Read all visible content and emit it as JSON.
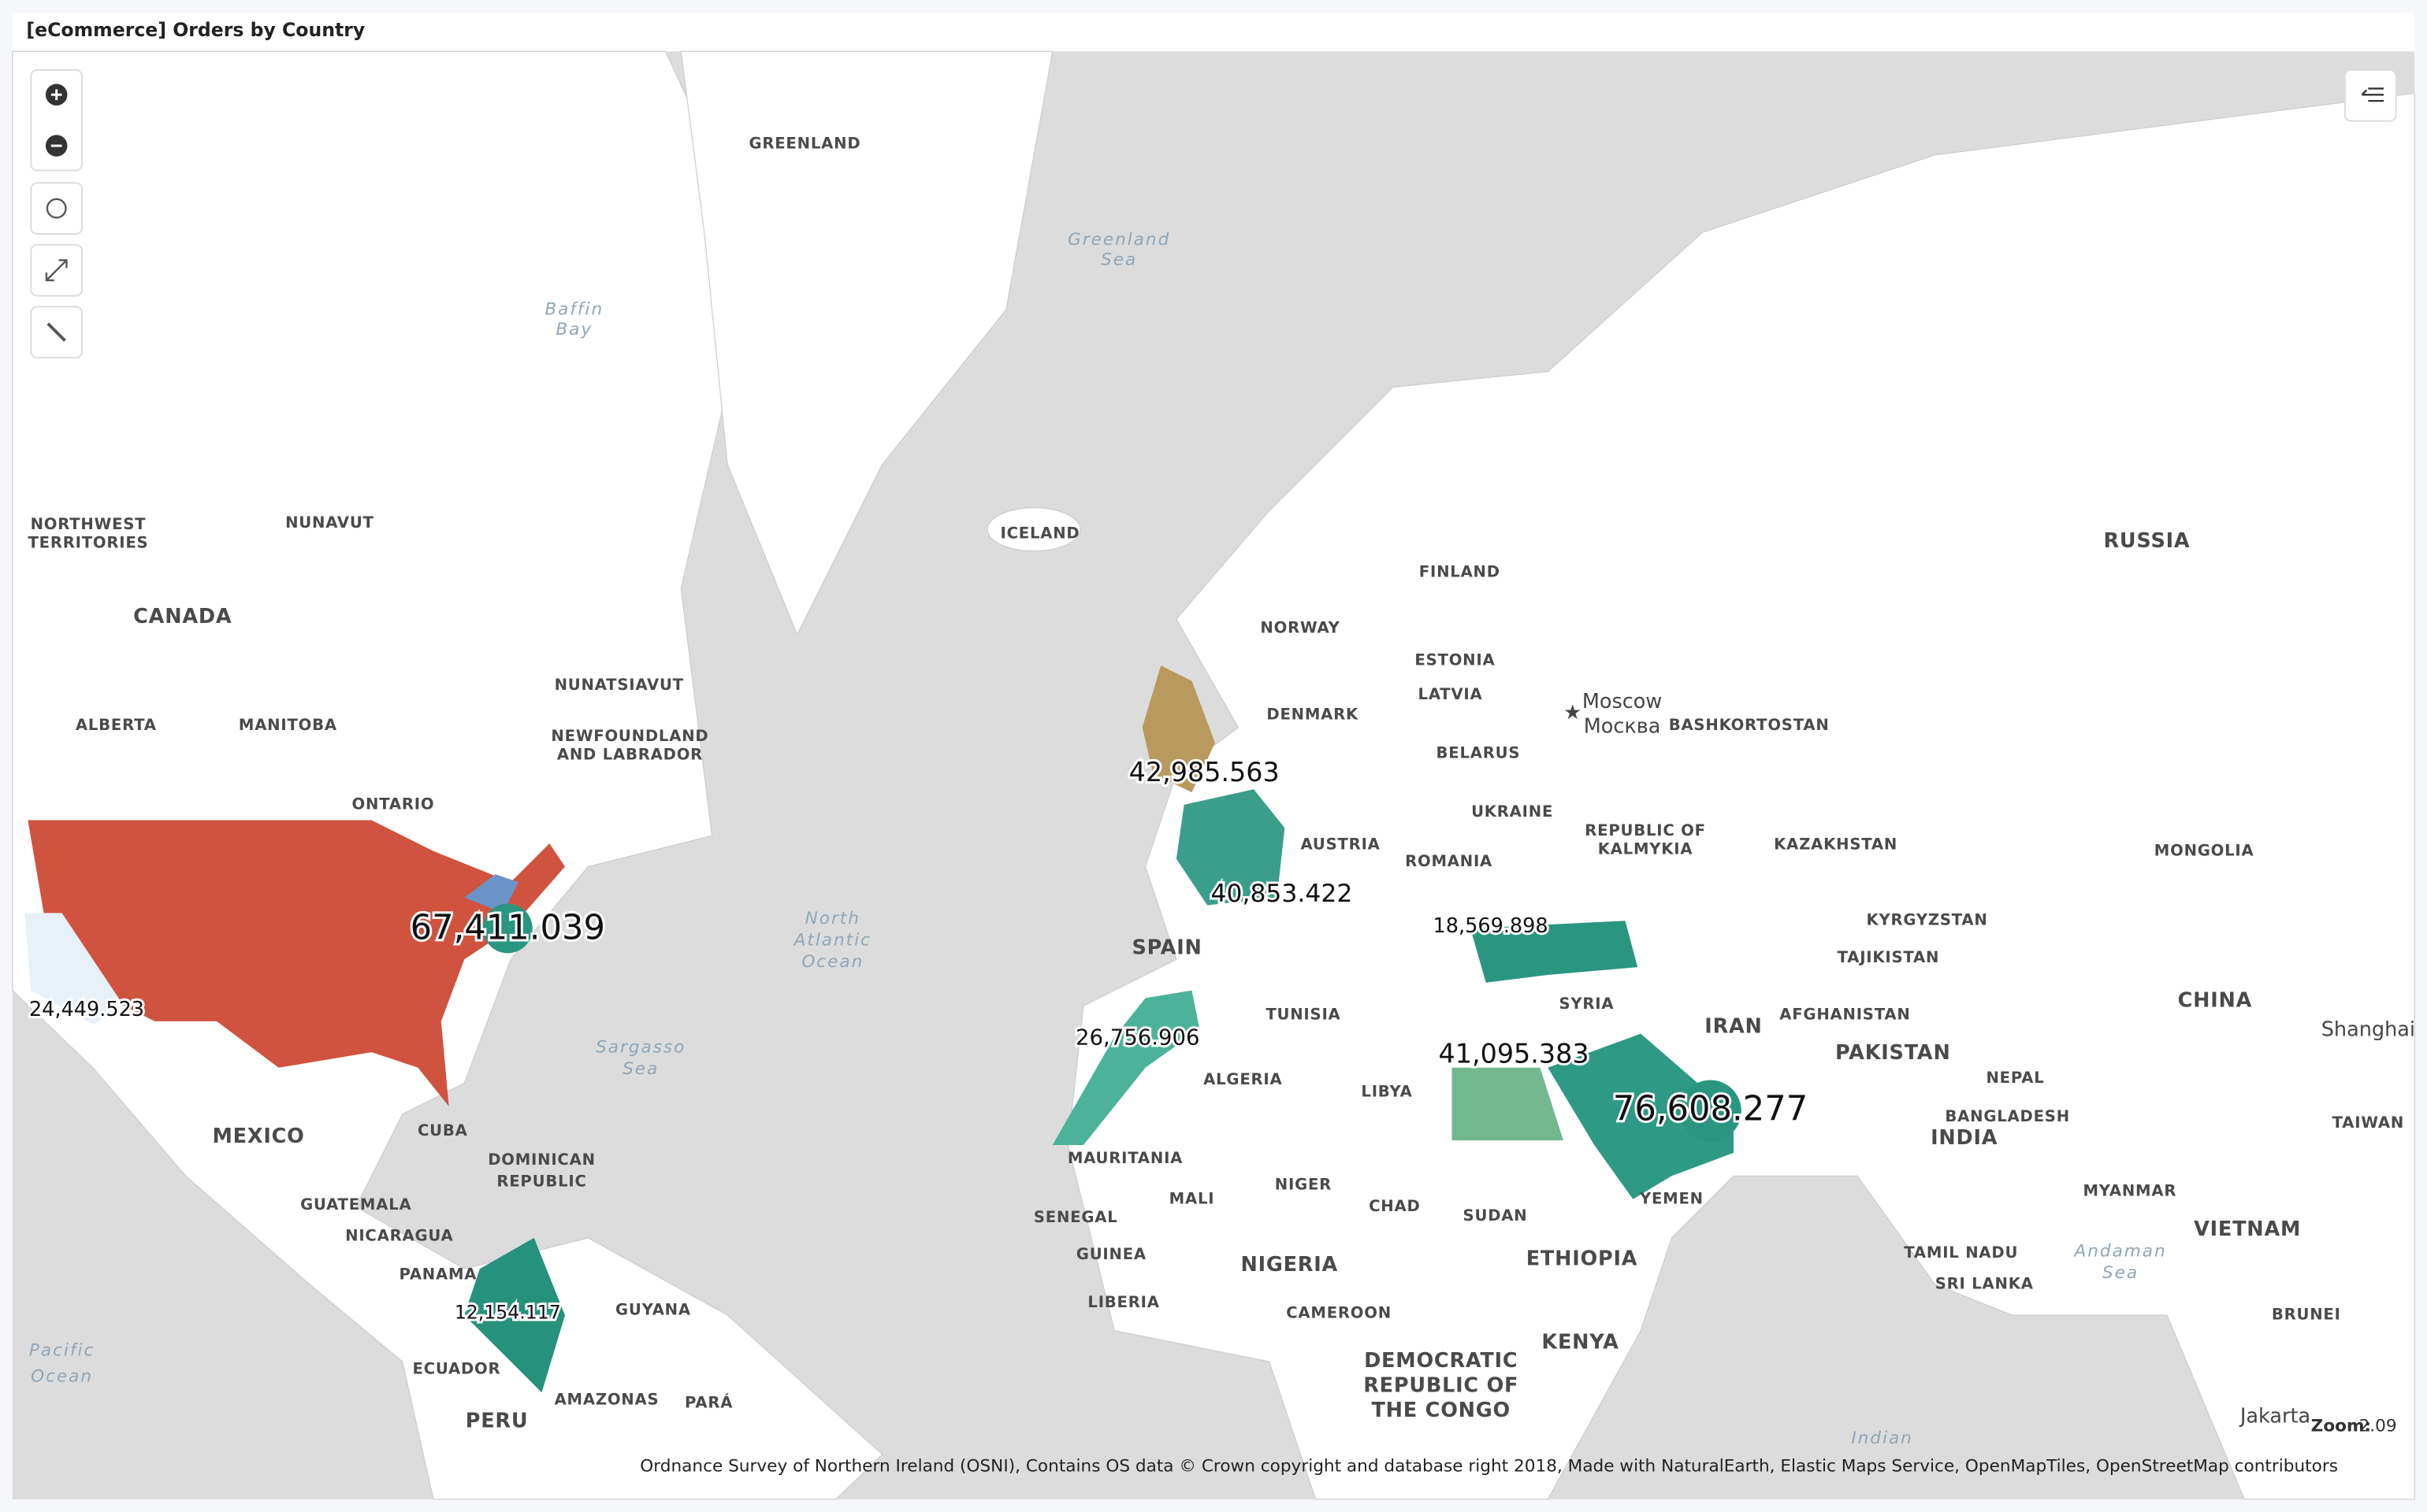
{
  "header": {
    "title": "[eCommerce] Orders by Country"
  },
  "map": {
    "labels": [
      "GREENLAND",
      "NORTHWEST",
      "TERRITORIES",
      "NUNAVUT",
      "CANADA",
      "ALBERTA",
      "MANITOBA",
      "NUNATSIAVUT",
      "NEWFOUNDLAND",
      "AND LABRADOR",
      "ONTARIO",
      "MEXICO",
      "CUBA",
      "DOMINICAN",
      "REPUBLIC",
      "GUATEMALA",
      "NICARAGUA",
      "PANAMA",
      "GUYANA",
      "ECUADOR",
      "PERU",
      "AMAZONAS",
      "PARÁ",
      "ICELAND",
      "FINLAND",
      "NORWAY",
      "ESTONIA",
      "LATVIA",
      "DENMARK",
      "BELARUS",
      "UKRAINE",
      "AUSTRIA",
      "ROMANIA",
      "SPAIN",
      "TUNISIA",
      "ALGERIA",
      "LIBYA",
      "MAURITANIA",
      "MALI",
      "NIGER",
      "CHAD",
      "SUDAN",
      "SENEGAL",
      "GUINEA",
      "NIGERIA",
      "LIBERIA",
      "ETHIOPIA",
      "CAMEROON",
      "KENYA",
      "DEMOCRATIC",
      "REPUBLIC OF",
      "THE CONGO",
      "SYRIA",
      "IRAN",
      "YEMEN",
      "AFGHANISTAN",
      "PAKISTAN",
      "KAZAKHSTAN",
      "KYRGYZSTAN",
      "TAJIKISTAN",
      "RUSSIA",
      "MONGOLIA",
      "CHINA",
      "INDIA",
      "NEPAL",
      "BANGLADESH",
      "VIETNAM",
      "TAIWAN",
      "MYANMAR",
      "SRI LANKA",
      "TAMIL NADU",
      "BRUNEI",
      "BASHKORTOSTAN",
      "REPUBLIC OF",
      "KALMYKIA"
    ],
    "cities": [
      "Moscow",
      "Москва",
      "Shanghai",
      "Jakarta"
    ],
    "water_labels": [
      "Greenland",
      "Sea",
      "Baffin",
      "Bay",
      "North",
      "Atlantic",
      "Ocean",
      "Sargasso",
      "Sea",
      "Pacific",
      "Ocean",
      "Indian",
      "Andaman",
      "Sea"
    ],
    "metrics": [
      {
        "value": 67411.039,
        "label": "67,411.039"
      },
      {
        "value": 24449.523,
        "label": "24,449.523"
      },
      {
        "value": 42985.563,
        "label": "42,985.563"
      },
      {
        "value": 40853.422,
        "label": "40,853.422"
      },
      {
        "value": 18569.898,
        "label": "18,569.898"
      },
      {
        "value": 26756.906,
        "label": "26,756.906"
      },
      {
        "value": 41095.383,
        "label": "41,095.383"
      },
      {
        "value": 76608.277,
        "label": "76,608.277"
      },
      {
        "value": 12154.117,
        "label": "12,154.117"
      }
    ],
    "attribution": "Ordnance Survey of Northern Ireland (OSNI), Contains OS data © Crown copyright and database right 2018, Made with NaturalEarth, Elastic Maps Service, OpenMapTiles, OpenStreetMap contributors",
    "zoom_label": "Zoom:",
    "zoom": 2.09
  }
}
